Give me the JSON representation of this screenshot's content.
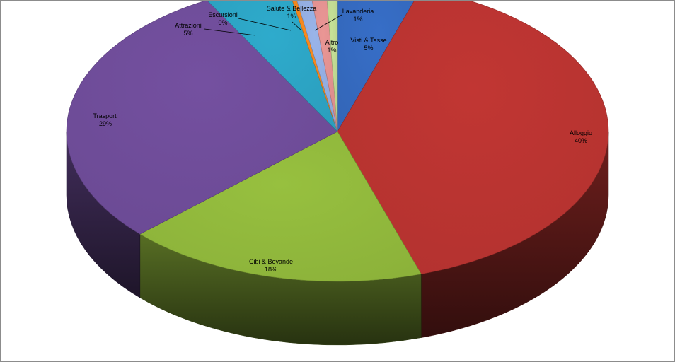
{
  "chart_data": {
    "type": "pie",
    "three_d": true,
    "title": "",
    "slices": [
      {
        "label": "Visti & Tasse",
        "value": 5,
        "display": "5%",
        "color": "#3366b8"
      },
      {
        "label": "Alloggio",
        "value": 40,
        "display": "40%",
        "color": "#b3322f"
      },
      {
        "label": "Cibi & Bevande",
        "value": 18,
        "display": "18%",
        "color": "#8cb23a"
      },
      {
        "label": "Trasporti",
        "value": 29,
        "display": "29%",
        "color": "#6b4a94"
      },
      {
        "label": "Attrazioni",
        "value": 5,
        "display": "5%",
        "color": "#2b9ebd"
      },
      {
        "label": "Escursioni",
        "value": 0,
        "display": "0%",
        "color": "#e8811c"
      },
      {
        "label": "Salute & Bellezza",
        "value": 1,
        "display": "1%",
        "color": "#8ea7d8"
      },
      {
        "label": "Lavanderia",
        "value": 1,
        "display": "1%",
        "color": "#d98b8a"
      },
      {
        "label": "Altro",
        "value": 1,
        "display": "1%",
        "color": "#b7d08c"
      }
    ],
    "legend": "none"
  }
}
